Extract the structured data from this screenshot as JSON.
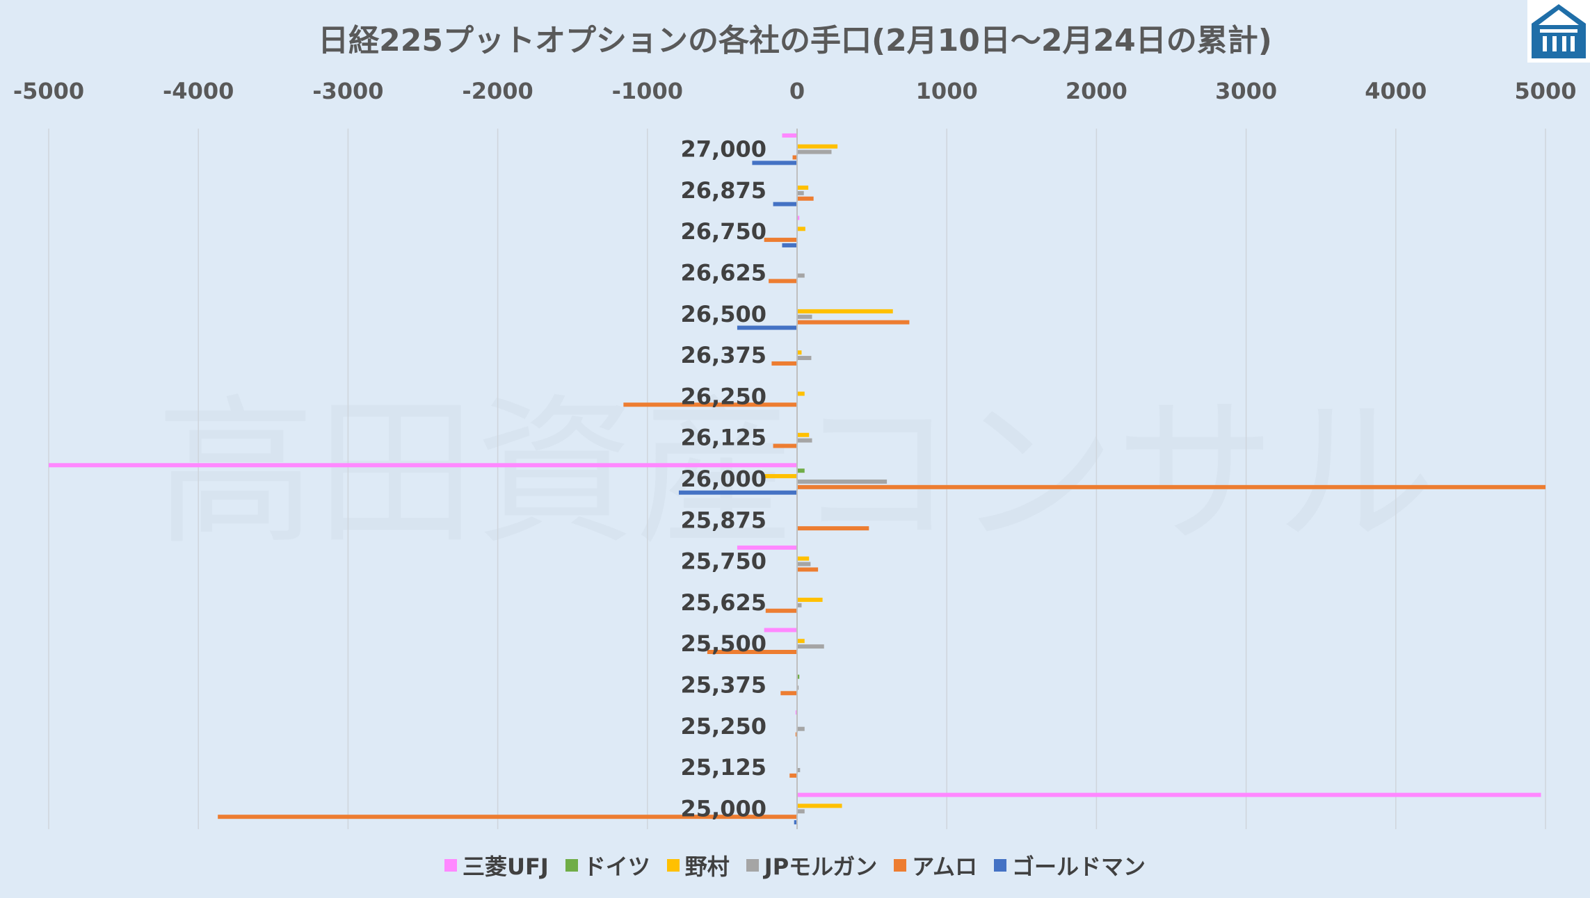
{
  "chart_data": {
    "type": "bar",
    "orientation": "horizontal",
    "title": "日経225プットオプションの各社の手口(2月10日～2月24日の累計)",
    "watermark": "高田資産コンサル",
    "xlim": [
      -5000,
      5000
    ],
    "x_ticks": [
      "-5000",
      "-4000",
      "-3000",
      "-2000",
      "-1000",
      "0",
      "1000",
      "2000",
      "3000",
      "4000",
      "5000"
    ],
    "x_tick_values": [
      -5000,
      -4000,
      -3000,
      -2000,
      -1000,
      0,
      1000,
      2000,
      3000,
      4000,
      5000
    ],
    "categories": [
      "27,000",
      "26,875",
      "26,750",
      "26,625",
      "26,500",
      "26,375",
      "26,250",
      "26,125",
      "26,000",
      "25,875",
      "25,750",
      "25,625",
      "25,500",
      "25,375",
      "25,250",
      "25,125",
      "25,000"
    ],
    "grid": true,
    "legend_position": "bottom",
    "series": [
      {
        "name": "三菱UFJ",
        "color": "#ff88ff",
        "values": [
          -100,
          0,
          15,
          0,
          0,
          0,
          0,
          0,
          -5000,
          0,
          -400,
          0,
          -220,
          0,
          -10,
          0,
          4970
        ]
      },
      {
        "name": "ドイツ",
        "color": "#70ad47",
        "values": [
          0,
          0,
          0,
          0,
          0,
          0,
          0,
          0,
          50,
          0,
          0,
          0,
          0,
          15,
          0,
          0,
          0
        ]
      },
      {
        "name": "野村",
        "color": "#ffc000",
        "values": [
          270,
          75,
          55,
          0,
          640,
          30,
          50,
          80,
          -220,
          0,
          80,
          170,
          50,
          0,
          0,
          0,
          300
        ]
      },
      {
        "name": "JPモルガン",
        "color": "#a5a5a5",
        "values": [
          230,
          45,
          0,
          50,
          100,
          95,
          0,
          100,
          600,
          0,
          90,
          30,
          180,
          10,
          50,
          20,
          50
        ]
      },
      {
        "name": "アムロ",
        "color": "#ed7d31",
        "values": [
          -30,
          110,
          -220,
          -190,
          750,
          -170,
          -1160,
          -160,
          5000,
          480,
          140,
          -210,
          -600,
          -110,
          -10,
          -50,
          -3870
        ]
      },
      {
        "name": "ゴールドマン",
        "color": "#4472c4",
        "values": [
          -300,
          -160,
          -100,
          0,
          -400,
          0,
          0,
          0,
          -790,
          0,
          0,
          0,
          0,
          0,
          0,
          0,
          -20
        ]
      }
    ]
  }
}
